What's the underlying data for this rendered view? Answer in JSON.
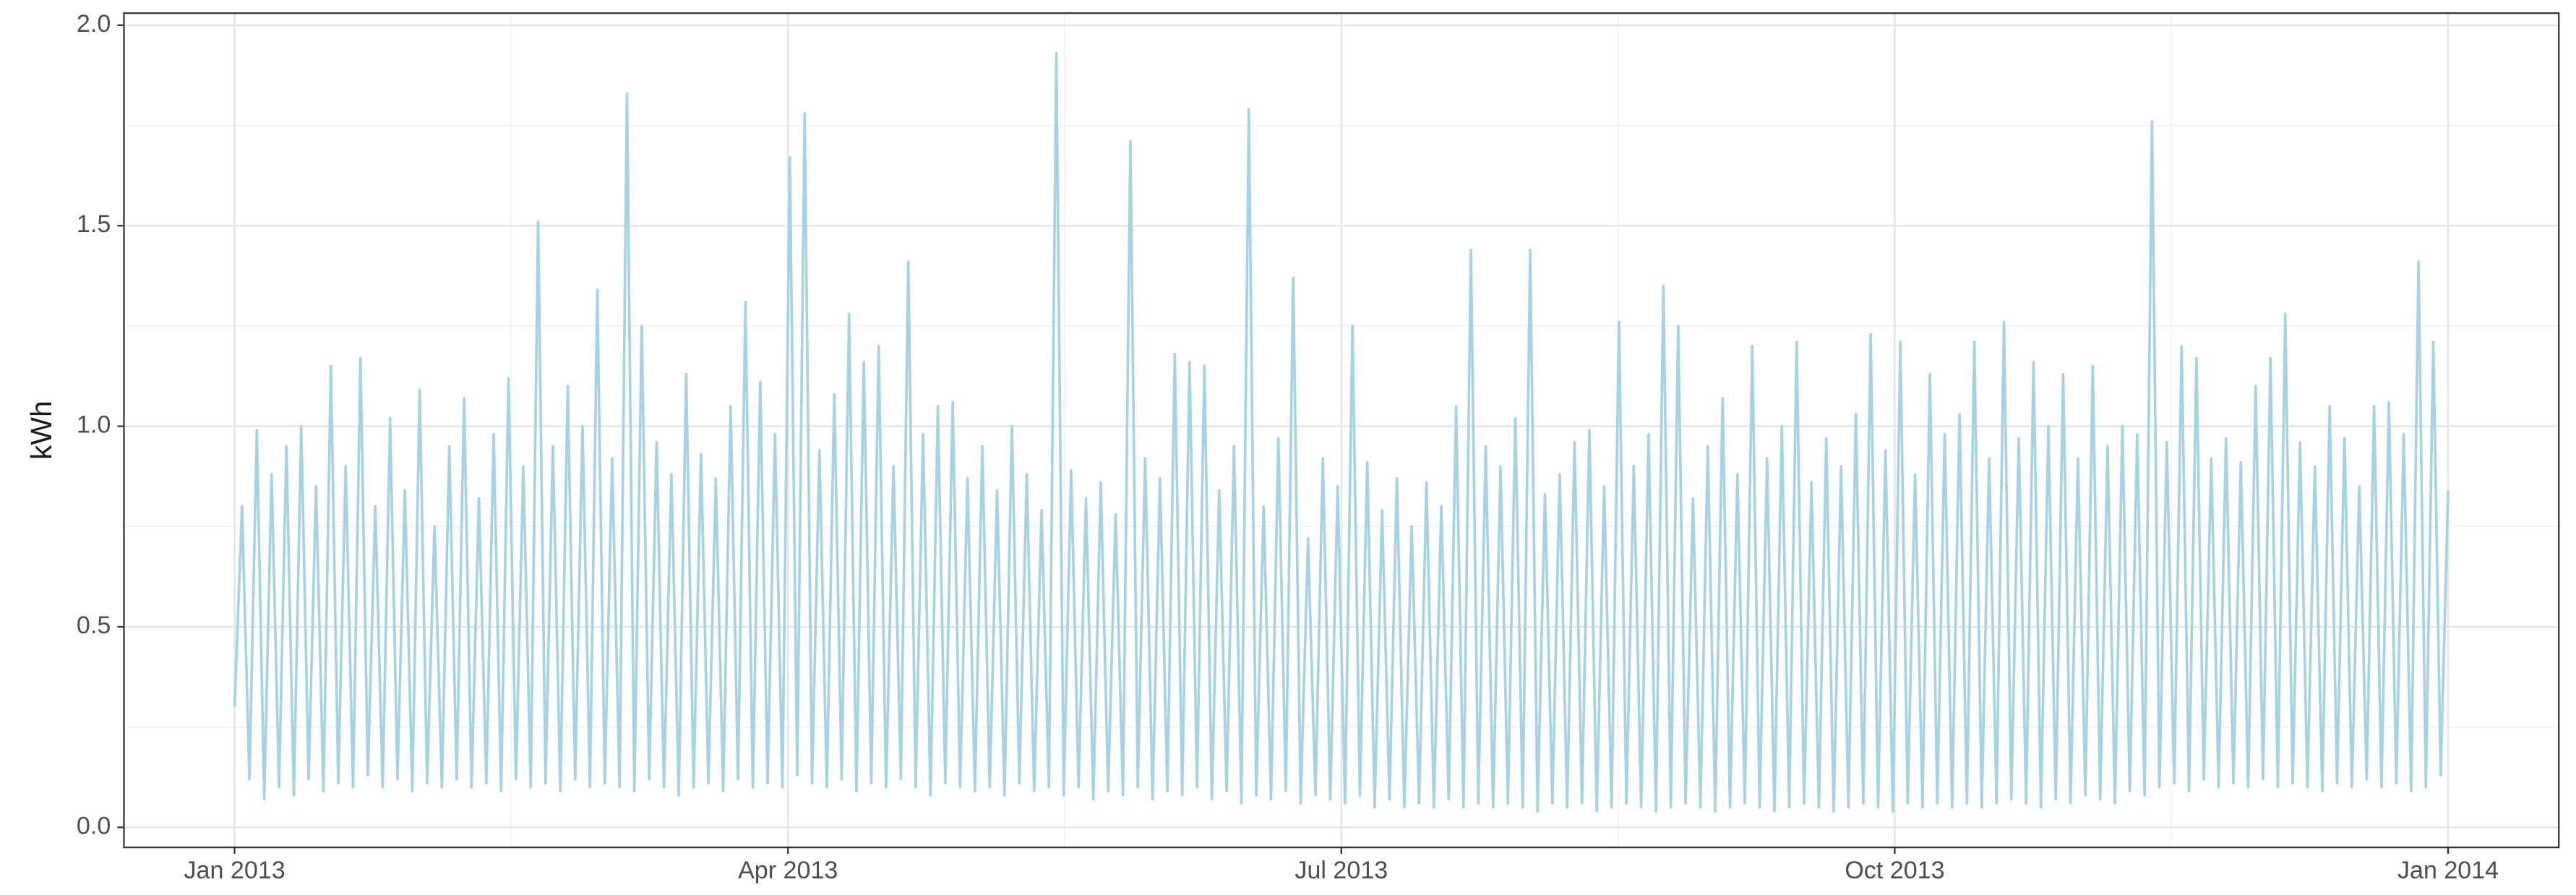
{
  "chart_data": {
    "type": "line",
    "y_label": "kWh",
    "color": "#a6d2e2",
    "grid": true,
    "ylim": [
      -0.05,
      2.03
    ],
    "yticks": [
      {
        "value": 0,
        "label": "0.0"
      },
      0.5,
      {
        "value": 1,
        "label": "1.0"
      },
      1.5,
      {
        "value": 2,
        "label": "2.0"
      }
    ],
    "xticks": [
      {
        "value": "2013-01",
        "label": "Jan 2013"
      },
      {
        "value": "2013-04",
        "label": "Apr 2013"
      },
      {
        "value": "2013-07",
        "label": "Jul 2013"
      },
      {
        "value": "2013-10",
        "label": "Oct 2013"
      },
      {
        "value": "2014-01",
        "label": "Jan 2014"
      }
    ],
    "values": [
      0.3,
      0.8,
      0.12,
      0.99,
      0.07,
      0.88,
      0.1,
      0.95,
      0.08,
      1.0,
      0.12,
      0.85,
      0.09,
      1.15,
      0.11,
      0.9,
      0.1,
      1.17,
      0.13,
      0.8,
      0.1,
      1.02,
      0.12,
      0.84,
      0.09,
      1.09,
      0.11,
      0.75,
      0.1,
      0.95,
      0.12,
      1.07,
      0.1,
      0.82,
      0.11,
      0.98,
      0.09,
      1.12,
      0.12,
      0.9,
      0.1,
      1.51,
      0.11,
      0.95,
      0.09,
      1.1,
      0.12,
      1.0,
      0.1,
      1.34,
      0.11,
      0.92,
      0.1,
      1.83,
      0.09,
      1.25,
      0.12,
      0.96,
      0.1,
      0.88,
      0.08,
      1.13,
      0.1,
      0.93,
      0.11,
      0.87,
      0.09,
      1.05,
      0.12,
      1.31,
      0.1,
      1.11,
      0.11,
      0.98,
      0.1,
      1.67,
      0.13,
      1.78,
      0.11,
      0.94,
      0.1,
      1.08,
      0.12,
      1.28,
      0.09,
      1.16,
      0.11,
      1.2,
      0.1,
      0.9,
      0.12,
      1.41,
      0.1,
      0.98,
      0.08,
      1.05,
      0.11,
      1.06,
      0.1,
      0.87,
      0.09,
      0.95,
      0.1,
      0.84,
      0.08,
      1.0,
      0.11,
      0.88,
      0.09,
      0.79,
      0.1,
      1.93,
      0.08,
      0.89,
      0.1,
      0.82,
      0.07,
      0.86,
      0.09,
      0.78,
      0.08,
      1.71,
      0.1,
      0.92,
      0.07,
      0.87,
      0.09,
      1.18,
      0.08,
      1.16,
      0.1,
      1.15,
      0.07,
      0.84,
      0.09,
      0.95,
      0.06,
      1.79,
      0.08,
      0.8,
      0.07,
      0.97,
      0.09,
      1.37,
      0.06,
      0.72,
      0.08,
      0.92,
      0.07,
      0.85,
      0.06,
      1.25,
      0.08,
      0.91,
      0.05,
      0.79,
      0.07,
      0.87,
      0.05,
      0.75,
      0.06,
      0.86,
      0.05,
      0.8,
      0.07,
      1.05,
      0.05,
      1.44,
      0.06,
      0.95,
      0.05,
      0.9,
      0.06,
      1.02,
      0.05,
      1.44,
      0.04,
      0.83,
      0.06,
      0.88,
      0.05,
      0.96,
      0.06,
      0.99,
      0.04,
      0.85,
      0.05,
      1.26,
      0.06,
      0.9,
      0.05,
      0.98,
      0.04,
      1.35,
      0.05,
      1.25,
      0.06,
      0.82,
      0.05,
      0.95,
      0.04,
      1.07,
      0.05,
      0.88,
      0.06,
      1.2,
      0.05,
      0.92,
      0.04,
      1.0,
      0.05,
      1.21,
      0.06,
      0.86,
      0.05,
      0.97,
      0.04,
      0.9,
      0.05,
      1.03,
      0.06,
      1.23,
      0.05,
      0.94,
      0.04,
      1.21,
      0.06,
      0.88,
      0.05,
      1.13,
      0.06,
      0.98,
      0.05,
      1.03,
      0.06,
      1.21,
      0.05,
      0.92,
      0.06,
      1.26,
      0.07,
      0.97,
      0.06,
      1.16,
      0.05,
      1.0,
      0.07,
      1.13,
      0.06,
      0.92,
      0.08,
      1.15,
      0.07,
      0.95,
      0.06,
      1.0,
      0.09,
      0.98,
      0.08,
      1.76,
      0.1,
      0.96,
      0.11,
      1.2,
      0.09,
      1.17,
      0.12,
      0.92,
      0.1,
      0.97,
      0.11,
      0.91,
      0.1,
      1.1,
      0.12,
      1.17,
      0.1,
      1.28,
      0.11,
      0.96,
      0.1,
      0.9,
      0.09,
      1.05,
      0.11,
      0.97,
      0.1,
      0.85,
      0.12,
      1.05,
      0.1,
      1.06,
      0.11,
      0.98,
      0.09,
      1.41,
      0.1,
      1.21,
      0.13,
      0.84
    ]
  }
}
